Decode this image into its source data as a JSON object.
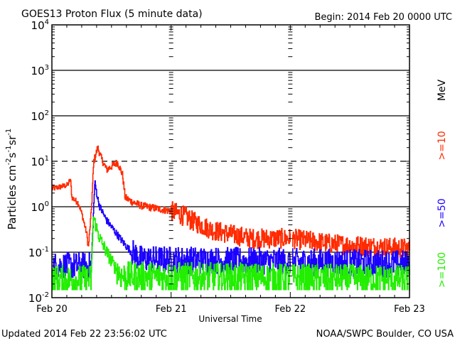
{
  "chart_data": {
    "type": "line",
    "title": "GOES13 Proton Flux (5 minute data)",
    "begin_label": "Begin: 2014 Feb 20 0000 UTC",
    "xlabel": "Universal Time",
    "ylabel": "Particles cm",
    "ylabel_parts": [
      "Particles cm",
      "-2",
      "s",
      "-1",
      "sr",
      "-1"
    ],
    "units_label": "MeV",
    "x_unit": "hours since 2014 Feb 20 00:00 UTC",
    "xlim": [
      0,
      72
    ],
    "ylim": [
      0.01,
      10000
    ],
    "yscale": "log",
    "x_ticks": [
      {
        "value": 0,
        "label": "Feb 20"
      },
      {
        "value": 24,
        "label": "Feb 21"
      },
      {
        "value": 48,
        "label": "Feb 22"
      },
      {
        "value": 72,
        "label": "Feb 23"
      }
    ],
    "y_ticks": [
      {
        "value": 0.01,
        "base": "10",
        "exp": "-2"
      },
      {
        "value": 0.1,
        "base": "10",
        "exp": "-1"
      },
      {
        "value": 1,
        "base": "10",
        "exp": "0"
      },
      {
        "value": 10,
        "base": "10",
        "exp": "1"
      },
      {
        "value": 100,
        "base": "10",
        "exp": "2"
      },
      {
        "value": 1000,
        "base": "10",
        "exp": "3"
      },
      {
        "value": 10000,
        "base": "10",
        "exp": "4"
      }
    ],
    "reference_lines": [
      {
        "value": 1000,
        "style": "solid"
      },
      {
        "value": 100,
        "style": "solid"
      },
      {
        "value": 10,
        "style": "dashed"
      },
      {
        "value": 1,
        "style": "solid"
      },
      {
        "value": 0.1,
        "style": "solid"
      }
    ],
    "data_gap_hours": [
      48.0,
      48.4
    ],
    "series": [
      {
        "name": ">=10",
        "color": "#ff2a00",
        "points": [
          [
            0,
            2.5
          ],
          [
            2,
            2.8
          ],
          [
            3.1,
            3.0
          ],
          [
            3.7,
            4.0
          ],
          [
            4.0,
            1.6
          ],
          [
            5.3,
            1.2
          ],
          [
            6,
            0.7
          ],
          [
            7,
            0.25
          ],
          [
            7.3,
            0.12
          ],
          [
            7.9,
            0.8
          ],
          [
            8.4,
            10
          ],
          [
            9.2,
            20
          ],
          [
            10,
            11
          ],
          [
            11,
            6.5
          ],
          [
            12.2,
            8
          ],
          [
            13.2,
            9.5
          ],
          [
            14.2,
            5
          ],
          [
            14.7,
            1.6
          ],
          [
            16,
            1.3
          ],
          [
            18,
            1.05
          ],
          [
            24,
            0.8
          ],
          [
            27,
            0.6
          ],
          [
            28,
            0.5
          ],
          [
            32.5,
            0.3
          ],
          [
            40,
            0.2
          ],
          [
            48,
            0.2
          ],
          [
            57,
            0.15
          ],
          [
            72,
            0.12
          ]
        ]
      },
      {
        "name": ">=50",
        "color": "#1a00ff",
        "points": [
          [
            0,
            0.05
          ],
          [
            7.9,
            0.05
          ],
          [
            8.2,
            0.3
          ],
          [
            8.6,
            3.5
          ],
          [
            9.2,
            1.5
          ],
          [
            9.6,
            1.0
          ],
          [
            11,
            0.5
          ],
          [
            12.5,
            0.3
          ],
          [
            14.6,
            0.15
          ],
          [
            16,
            0.1
          ],
          [
            18,
            0.07
          ],
          [
            72,
            0.055
          ]
        ]
      },
      {
        "name": ">=100",
        "color": "#22ee00",
        "points": [
          [
            0,
            0.025
          ],
          [
            7.9,
            0.025
          ],
          [
            8.3,
            0.6
          ],
          [
            9.6,
            0.2
          ],
          [
            11,
            0.1
          ],
          [
            12.5,
            0.05
          ],
          [
            14,
            0.03
          ],
          [
            72,
            0.025
          ]
        ]
      }
    ]
  },
  "footer": {
    "updated": "Updated 2014 Feb 22 23:56:02 UTC",
    "credit": "NOAA/SWPC Boulder, CO USA"
  }
}
